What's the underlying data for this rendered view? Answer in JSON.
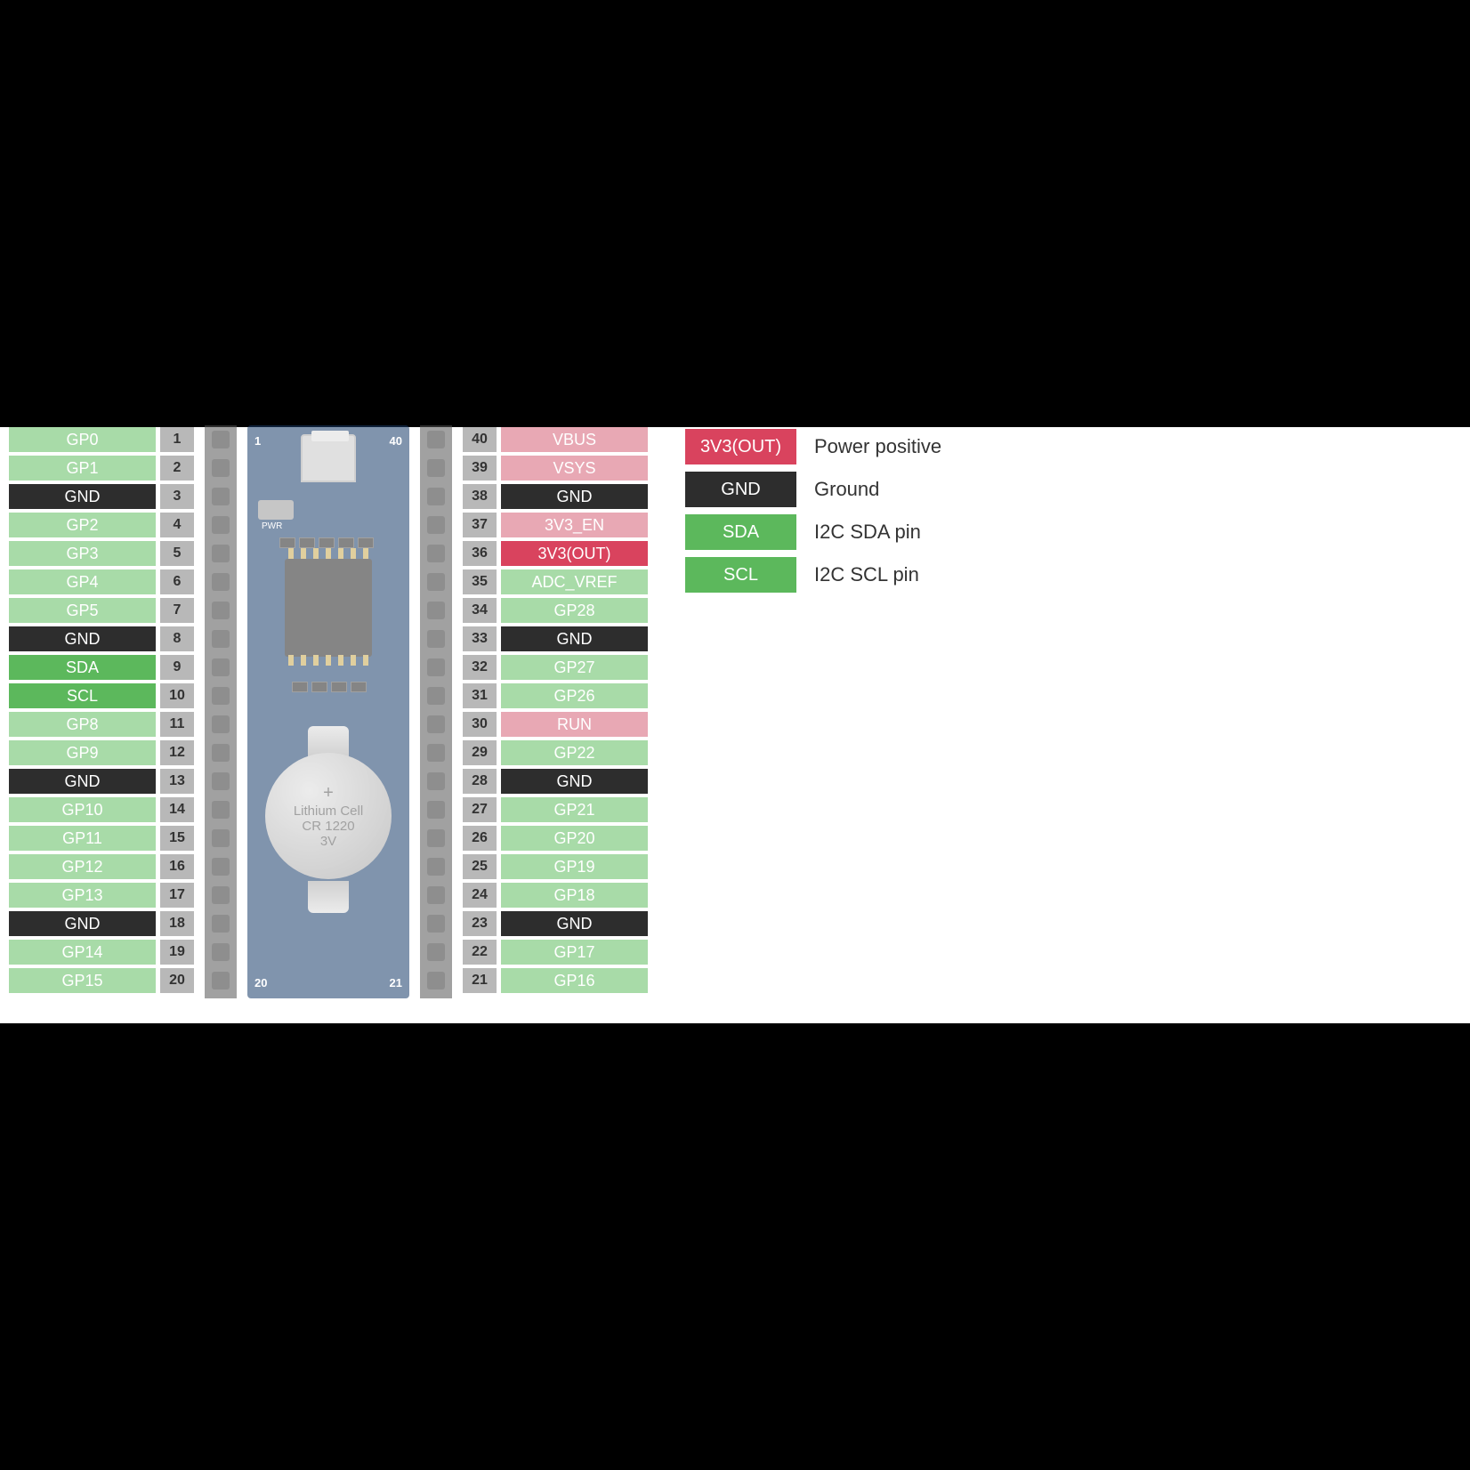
{
  "colors": {
    "green_faded": "#a8dba8",
    "green_bright": "#5cb85c",
    "dark": "#2d2d2d",
    "pink_faded": "#e8a8b4",
    "red_bright": "#d9435e",
    "grey_num": "#c0c0c0",
    "grey_num_dark": "#888888",
    "white": "#ffffff",
    "text_dark": "#333333"
  },
  "left_pins": [
    {
      "label": "GP0",
      "bg": "#a8dba8",
      "fg": "#ffffff"
    },
    {
      "label": "GP1",
      "bg": "#a8dba8",
      "fg": "#ffffff"
    },
    {
      "label": "GND",
      "bg": "#2d2d2d",
      "fg": "#ffffff"
    },
    {
      "label": "GP2",
      "bg": "#a8dba8",
      "fg": "#ffffff"
    },
    {
      "label": "GP3",
      "bg": "#a8dba8",
      "fg": "#ffffff"
    },
    {
      "label": "GP4",
      "bg": "#a8dba8",
      "fg": "#ffffff"
    },
    {
      "label": "GP5",
      "bg": "#a8dba8",
      "fg": "#ffffff"
    },
    {
      "label": "GND",
      "bg": "#2d2d2d",
      "fg": "#ffffff"
    },
    {
      "label": "SDA",
      "bg": "#5cb85c",
      "fg": "#ffffff"
    },
    {
      "label": "SCL",
      "bg": "#5cb85c",
      "fg": "#ffffff"
    },
    {
      "label": "GP8",
      "bg": "#a8dba8",
      "fg": "#ffffff"
    },
    {
      "label": "GP9",
      "bg": "#a8dba8",
      "fg": "#ffffff"
    },
    {
      "label": "GND",
      "bg": "#2d2d2d",
      "fg": "#ffffff"
    },
    {
      "label": "GP10",
      "bg": "#a8dba8",
      "fg": "#ffffff"
    },
    {
      "label": "GP11",
      "bg": "#a8dba8",
      "fg": "#ffffff"
    },
    {
      "label": "GP12",
      "bg": "#a8dba8",
      "fg": "#ffffff"
    },
    {
      "label": "GP13",
      "bg": "#a8dba8",
      "fg": "#ffffff"
    },
    {
      "label": "GND",
      "bg": "#2d2d2d",
      "fg": "#ffffff"
    },
    {
      "label": "GP14",
      "bg": "#a8dba8",
      "fg": "#ffffff"
    },
    {
      "label": "GP15",
      "bg": "#a8dba8",
      "fg": "#ffffff"
    }
  ],
  "left_nums": [
    "1",
    "2",
    "3",
    "4",
    "5",
    "6",
    "7",
    "8",
    "9",
    "10",
    "11",
    "12",
    "13",
    "14",
    "15",
    "16",
    "17",
    "18",
    "19",
    "20"
  ],
  "right_nums": [
    "40",
    "39",
    "38",
    "37",
    "36",
    "35",
    "34",
    "33",
    "32",
    "31",
    "30",
    "29",
    "28",
    "27",
    "26",
    "25",
    "24",
    "23",
    "22",
    "21"
  ],
  "right_pins": [
    {
      "label": "VBUS",
      "bg": "#e8a8b4",
      "fg": "#ffffff"
    },
    {
      "label": "VSYS",
      "bg": "#e8a8b4",
      "fg": "#ffffff"
    },
    {
      "label": "GND",
      "bg": "#2d2d2d",
      "fg": "#ffffff"
    },
    {
      "label": "3V3_EN",
      "bg": "#e8a8b4",
      "fg": "#ffffff"
    },
    {
      "label": "3V3(OUT)",
      "bg": "#d9435e",
      "fg": "#ffffff"
    },
    {
      "label": "ADC_VREF",
      "bg": "#a8dba8",
      "fg": "#ffffff"
    },
    {
      "label": "GP28",
      "bg": "#a8dba8",
      "fg": "#ffffff"
    },
    {
      "label": "GND",
      "bg": "#2d2d2d",
      "fg": "#ffffff"
    },
    {
      "label": "GP27",
      "bg": "#a8dba8",
      "fg": "#ffffff"
    },
    {
      "label": "GP26",
      "bg": "#a8dba8",
      "fg": "#ffffff"
    },
    {
      "label": "RUN",
      "bg": "#e8a8b4",
      "fg": "#ffffff"
    },
    {
      "label": "GP22",
      "bg": "#a8dba8",
      "fg": "#ffffff"
    },
    {
      "label": "GND",
      "bg": "#2d2d2d",
      "fg": "#ffffff"
    },
    {
      "label": "GP21",
      "bg": "#a8dba8",
      "fg": "#ffffff"
    },
    {
      "label": "GP20",
      "bg": "#a8dba8",
      "fg": "#ffffff"
    },
    {
      "label": "GP19",
      "bg": "#a8dba8",
      "fg": "#ffffff"
    },
    {
      "label": "GP18",
      "bg": "#a8dba8",
      "fg": "#ffffff"
    },
    {
      "label": "GND",
      "bg": "#2d2d2d",
      "fg": "#ffffff"
    },
    {
      "label": "GP17",
      "bg": "#a8dba8",
      "fg": "#ffffff"
    },
    {
      "label": "GP16",
      "bg": "#a8dba8",
      "fg": "#ffffff"
    }
  ],
  "num_bg_odd": "#c0c0c0",
  "num_bg_even": "#a8a8a8",
  "num_fg": "#333333",
  "legend": [
    {
      "swatch": "3V3(OUT)",
      "bg": "#d9435e",
      "text": "Power positive"
    },
    {
      "swatch": "GND",
      "bg": "#2d2d2d",
      "text": "Ground"
    },
    {
      "swatch": "SDA",
      "bg": "#5cb85c",
      "text": "I2C SDA pin"
    },
    {
      "swatch": "SCL",
      "bg": "#5cb85c",
      "text": "I2C SCL pin"
    }
  ],
  "pcb": {
    "num_1": "1",
    "num_40": "40",
    "num_20": "20",
    "num_21": "21",
    "pwr_label": "PWR",
    "battery_line1": "Lithium Cell",
    "battery_line2": "CR 1220",
    "battery_line3": "3V"
  }
}
